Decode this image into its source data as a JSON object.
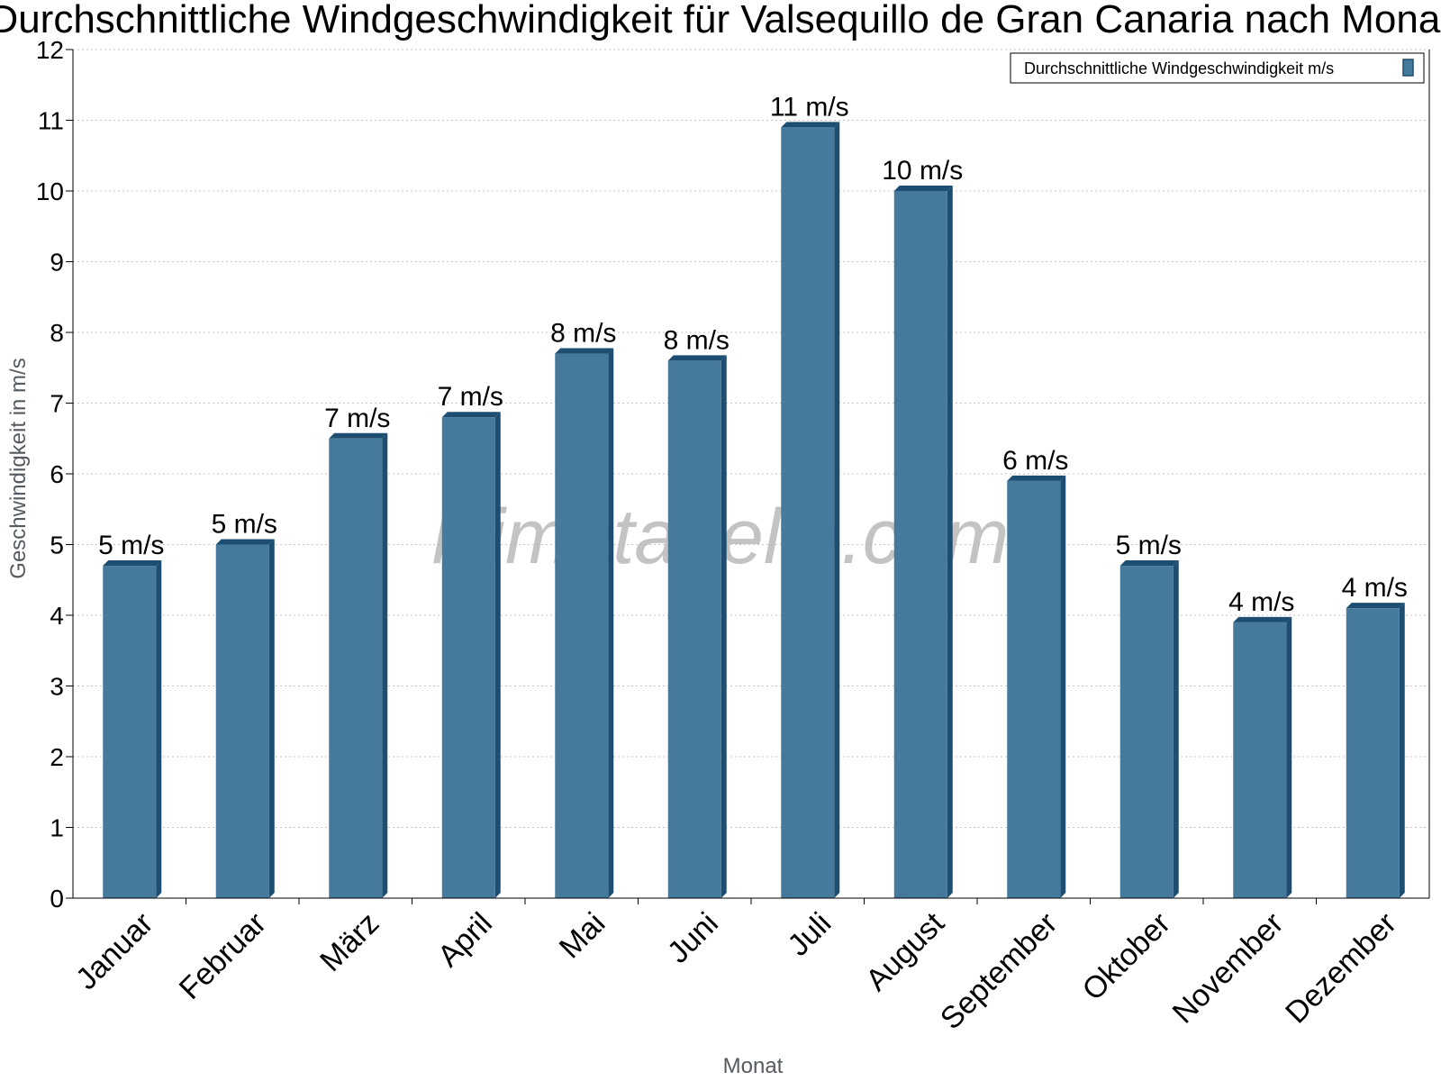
{
  "chart_data": {
    "type": "bar",
    "title": "Durchschnittliche Windgeschwindigkeit für Valsequillo de Gran Canaria nach Monat",
    "xlabel": "Monat",
    "ylabel": "Geschwindigkeit in m/s",
    "ylim": [
      0,
      12
    ],
    "yticks": [
      "0",
      "1",
      "2",
      "3",
      "4",
      "5",
      "6",
      "7",
      "8",
      "9",
      "10",
      "11",
      "12"
    ],
    "grid": true,
    "legend_position": "top-right",
    "categories": [
      "Januar",
      "Februar",
      "März",
      "April",
      "Mai",
      "Juni",
      "Juli",
      "August",
      "September",
      "Oktober",
      "November",
      "Dezember"
    ],
    "series": [
      {
        "name": "Durchschnittliche Windgeschwindigkeit m/s",
        "values": [
          4.7,
          5.0,
          6.5,
          6.8,
          7.7,
          7.6,
          10.9,
          10.0,
          5.9,
          4.7,
          3.9,
          4.1
        ],
        "labels": [
          "5 m/s",
          "5 m/s",
          "7 m/s",
          "7 m/s",
          "8 m/s",
          "8 m/s",
          "11 m/s",
          "10 m/s",
          "6 m/s",
          "5 m/s",
          "4 m/s",
          "4 m/s"
        ]
      }
    ],
    "colors": {
      "bar": "#457a9d",
      "bar_side": "#1d4d70",
      "bar_top": "#1d4d70"
    },
    "watermark": "klimatabelle.com"
  }
}
